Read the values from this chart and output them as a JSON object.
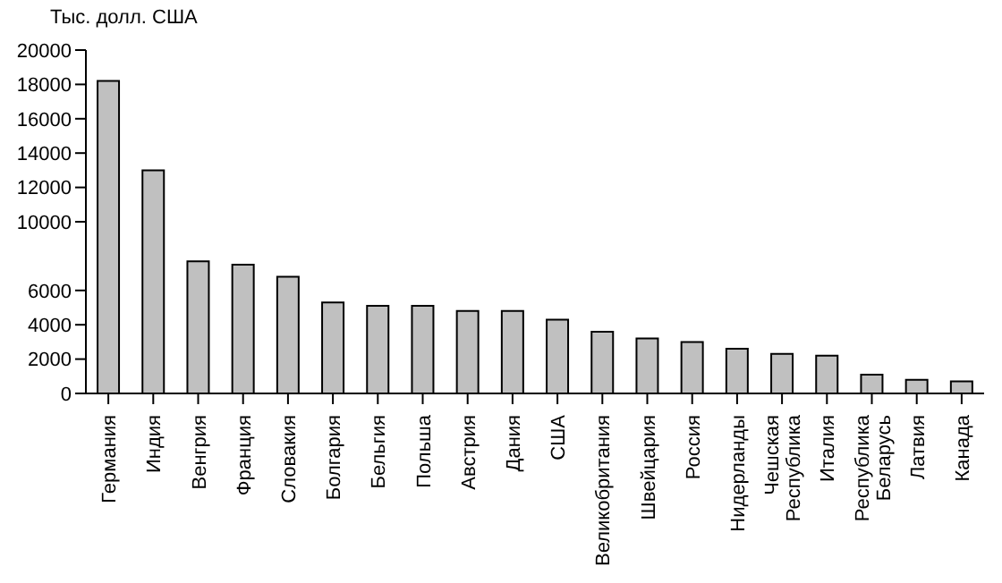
{
  "chart_data": {
    "type": "bar",
    "ylabel": "Тыс. долл. США",
    "categories": [
      "Германия",
      "Индия",
      "Венгрия",
      "Франция",
      "Словакия",
      "Болгария",
      "Бельгия",
      "Польша",
      "Австрия",
      "Дания",
      "США",
      "Великобритания",
      "Швейцария",
      "Россия",
      "Нидерланды",
      "Чешская\nРеспублика",
      "Италия",
      "Республика\nБеларусь",
      "Латвия",
      "Канада"
    ],
    "values": [
      18200,
      13000,
      7700,
      7500,
      6800,
      5300,
      5100,
      5100,
      4800,
      4800,
      4300,
      3600,
      3200,
      3000,
      2600,
      2300,
      2200,
      1100,
      800,
      700
    ],
    "color": "#c0c0c0",
    "ylim": [
      0,
      20000
    ],
    "yticks": [
      0,
      2000,
      4000,
      6000,
      10000,
      12000,
      14000,
      16000,
      18000,
      20000
    ],
    "grid": false,
    "legend": false
  }
}
